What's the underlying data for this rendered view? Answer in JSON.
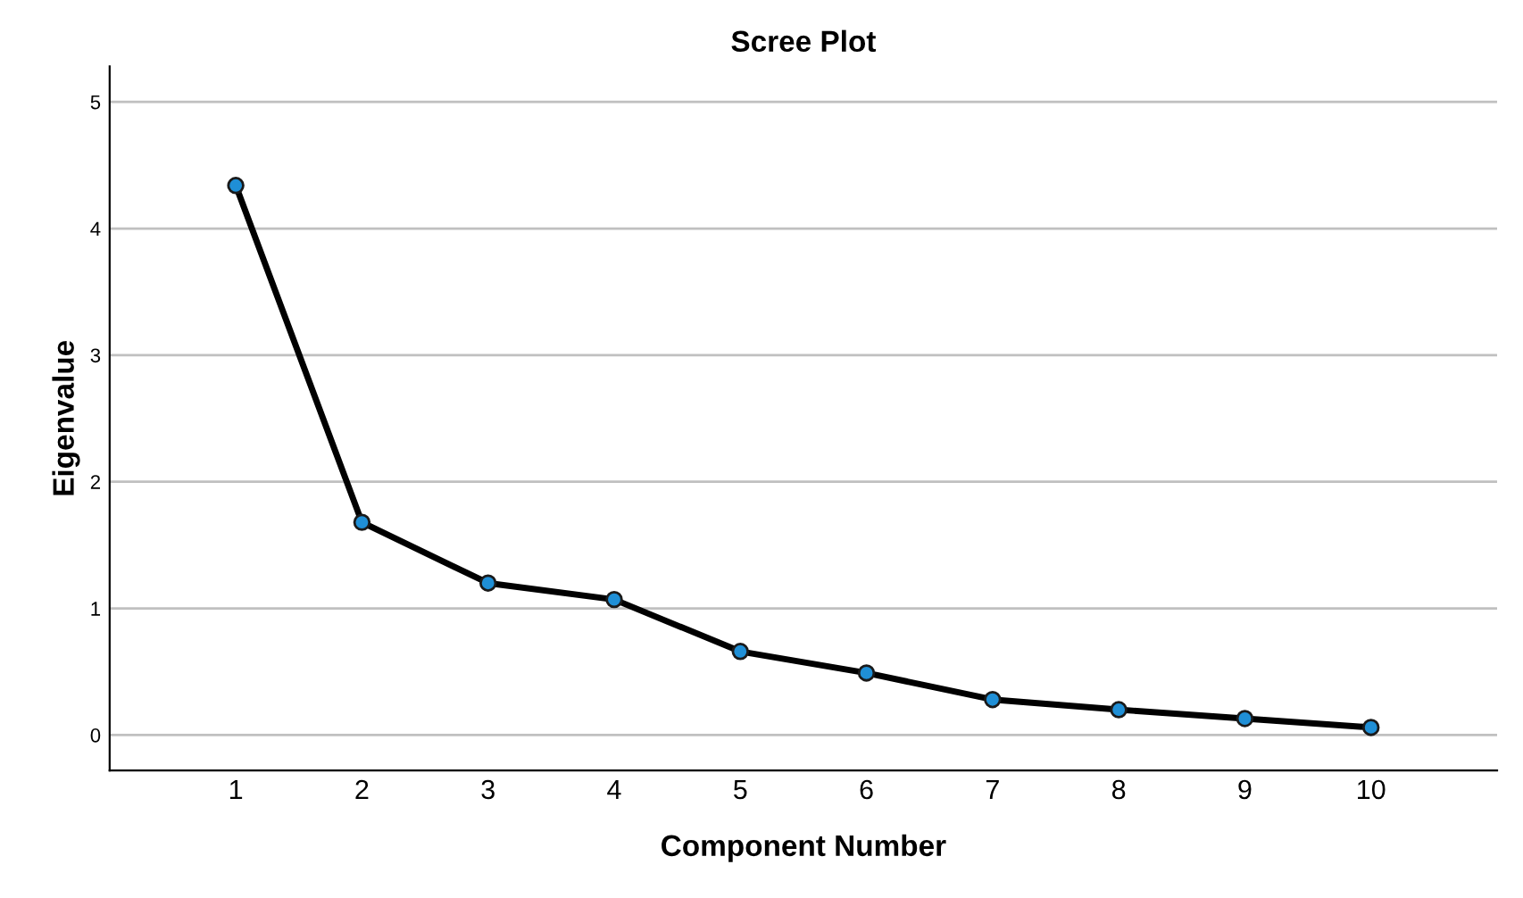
{
  "chart_data": {
    "type": "line",
    "title": "Scree Plot",
    "xlabel": "Component Number",
    "ylabel": "Eigenvalue",
    "x": [
      1,
      2,
      3,
      4,
      5,
      6,
      7,
      8,
      9,
      10
    ],
    "series": [
      {
        "color": "#000000",
        "values": [
          4.34,
          1.68,
          1.2,
          1.07,
          0.66,
          0.49,
          0.28,
          0.2,
          0.13,
          0.06
        ]
      }
    ],
    "xlim": [
      0,
      11
    ],
    "xticks": [
      1,
      2,
      3,
      4,
      5,
      6,
      7,
      8,
      9,
      10
    ],
    "ylim": [
      -0.28,
      5.28
    ],
    "yticks": [
      0,
      1,
      2,
      3,
      4,
      5
    ],
    "grid": "y",
    "marker": "circle",
    "line_style": "solid"
  }
}
